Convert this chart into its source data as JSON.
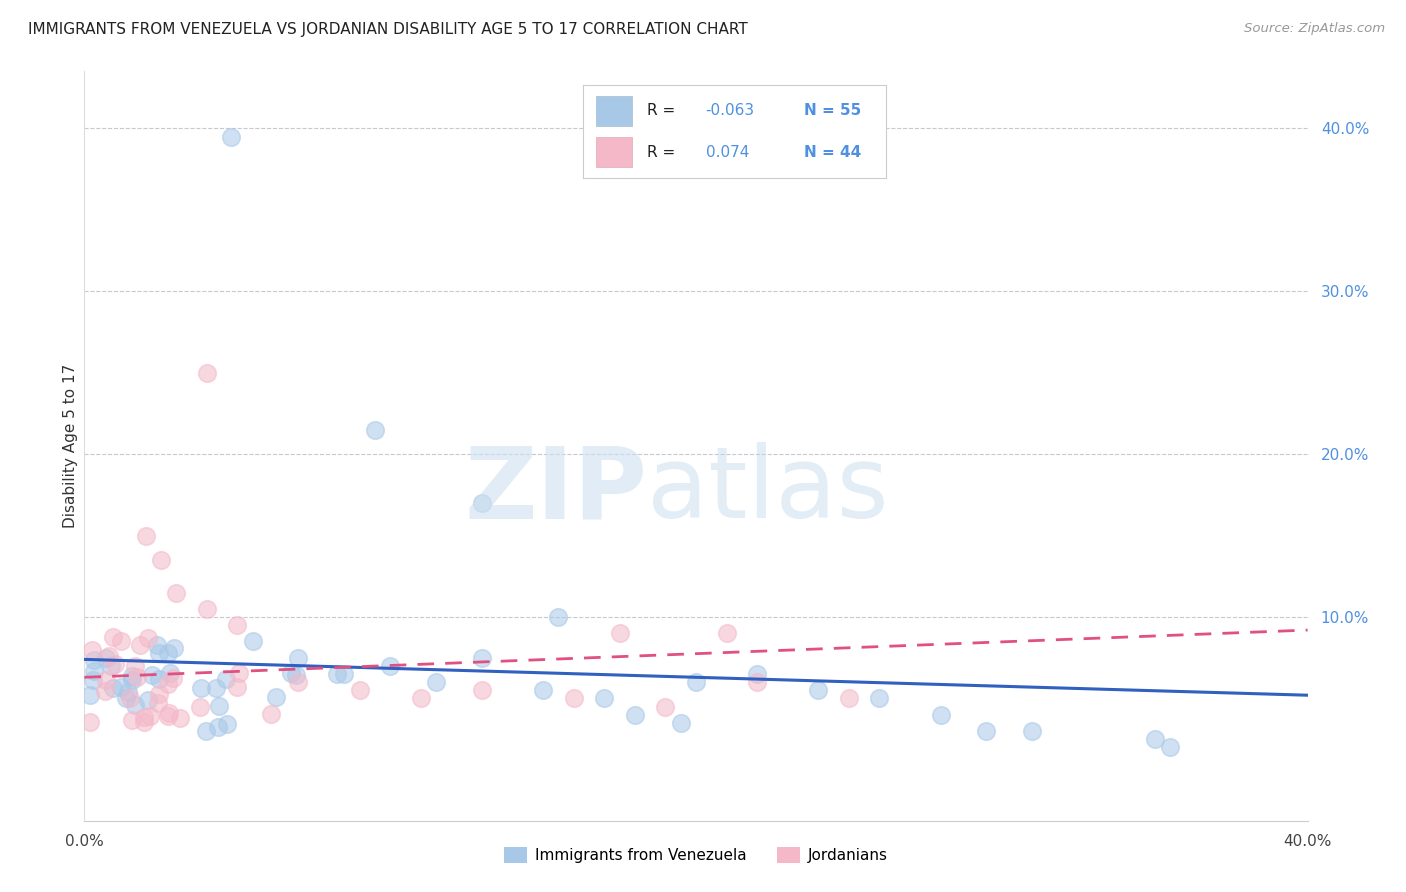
{
  "title": "IMMIGRANTS FROM VENEZUELA VS JORDANIAN DISABILITY AGE 5 TO 17 CORRELATION CHART",
  "source": "Source: ZipAtlas.com",
  "ylabel": "Disability Age 5 to 17",
  "y_tick_labels": [
    "10.0%",
    "20.0%",
    "30.0%",
    "40.0%"
  ],
  "y_tick_values": [
    0.1,
    0.2,
    0.3,
    0.4
  ],
  "xlim": [
    0.0,
    0.4
  ],
  "ylim": [
    -0.025,
    0.435
  ],
  "series1_label": "Immigrants from Venezuela",
  "series2_label": "Jordanians",
  "color_blue": "#a8c8e8",
  "color_pink": "#f4b8c8",
  "color_blue_line": "#3060c0",
  "color_pink_line": "#e05080",
  "blue_trend_start": 0.074,
  "blue_trend_end": 0.052,
  "pink_trend_start": 0.063,
  "pink_trend_end": 0.092,
  "watermark_zip": "ZIP",
  "watermark_atlas": "atlas",
  "legend_r1_label": "R = ",
  "legend_r1_val": "-0.063",
  "legend_n1": "N = 55",
  "legend_r2_label": "R =  ",
  "legend_r2_val": "0.074",
  "legend_n2": "N = 44"
}
